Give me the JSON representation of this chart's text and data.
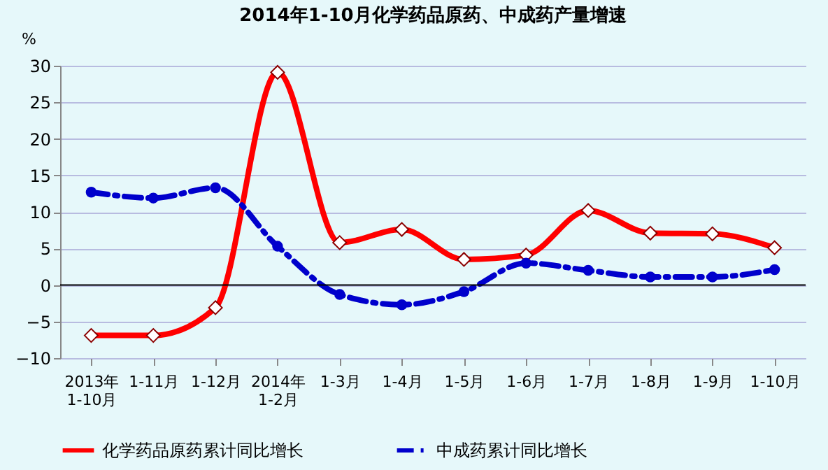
{
  "chart_data": {
    "type": "line",
    "title": "2014年1-10月化学药品原药、中成药产量增速",
    "ylabel": "%",
    "categories": [
      "2013年\n1-10月",
      "1-11月",
      "1-12月",
      "2014年\n1-2月",
      "1-3月",
      "1-4月",
      "1-5月",
      "1-6月",
      "1-7月",
      "1-8月",
      "1-9月",
      "1-10月"
    ],
    "series": [
      {
        "name": "化学药品原药累计同比增长",
        "color": "#ff0000",
        "marker": "diamond",
        "line_style": "solid",
        "values": [
          -6.9,
          -6.9,
          -3.1,
          29.1,
          5.8,
          7.6,
          3.5,
          4.1,
          10.2,
          7.1,
          7.0,
          5.1
        ]
      },
      {
        "name": "中成药累计同比增长",
        "color": "#0000cc",
        "marker": "circle",
        "line_style": "dashed",
        "values": [
          12.7,
          11.9,
          13.3,
          5.3,
          -1.3,
          -2.7,
          -0.9,
          3.0,
          2.0,
          1.1,
          1.1,
          2.1
        ]
      }
    ],
    "ylim": [
      -10,
      30
    ],
    "yticks": [
      -10,
      -5,
      0,
      5,
      10,
      15,
      20,
      25,
      30
    ],
    "grid": "y",
    "legend": "bottom"
  }
}
